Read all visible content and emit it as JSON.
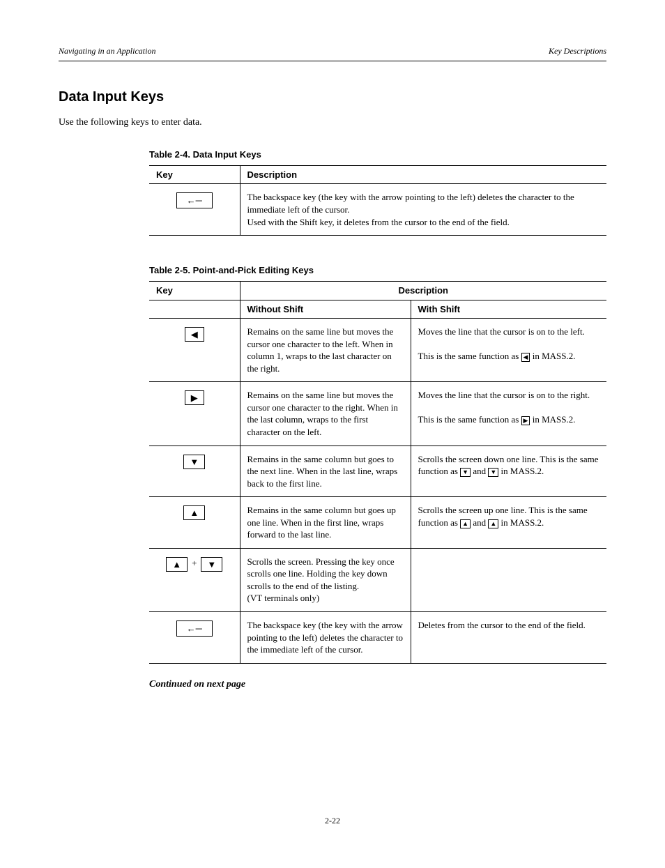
{
  "header": {
    "left": "Navigating in an Application",
    "right": "Key Descriptions"
  },
  "section": {
    "title": "Data Input Keys",
    "intro": "Use the following keys to enter data."
  },
  "table1": {
    "title": "Table 2-4. Data Input Keys",
    "headers": [
      "Key",
      "Description"
    ],
    "rows": [
      {
        "key_html": "<span class=\"key key-wide\">&#8592;&#9472;</span>",
        "desc": "The backspace key (the key with the arrow pointing to the left) deletes the character to the immediate left of the cursor.<br>Used with the Shift key, it deletes from the cursor to the end of the field."
      }
    ]
  },
  "table2": {
    "title": "Table 2-5. Point-and-Pick Editing Keys",
    "headers": [
      "Key",
      "Without Shift",
      "With Shift"
    ],
    "rows": [
      {
        "key_html": "<span class=\"key\">&#9664;</span>",
        "col2": "Remains on the same line but moves the cursor one character to the left. When in column 1, wraps to the last character on the right.",
        "col3": "Moves the line that the cursor is on to the left.<br><br>This is the same function as <span class=\"key-sm\">&#9664;</span> in MASS.2."
      },
      {
        "key_html": "<span class=\"key\">&#9654;</span>",
        "col2": "Remains on the same line but moves the cursor one character to the right. When in the last column, wraps to the first character on the left.",
        "col3": "Moves the line that the cursor is on to the right.<br><br>This is the same function as <span class=\"key-sm\">&#9654;</span> in MASS.2."
      },
      {
        "key_html": "<span class=\"key\">&#9660;</span>",
        "col2": "Remains in the same column but goes to the next line. When in the last line, wraps back to the first line.",
        "col3": "Scrolls the screen down one line. This is the same function as <span class=\"key-sm\">&#9660;</span> and <span class=\"key-sm\">&#9660;</span> in MASS.2."
      },
      {
        "key_html": "<span class=\"key\">&#9650;</span>",
        "col2": "Remains in the same column but goes up one line. When in the first line, wraps forward to the last line.",
        "col3": "Scrolls the screen up one line. This is the same function as <span class=\"key-sm\">&#9650;</span> and <span class=\"key-sm\">&#9650;</span> in MASS.2."
      },
      {
        "key_html": "<span class=\"key\">&#9650;</span><span class=\"plus\">+</span><span class=\"key\">&#9660;</span>",
        "col2": "Scrolls the screen. Pressing the key once scrolls one line. Holding the key down scrolls to the end of the listing.<br>(VT terminals only)",
        "col3": ""
      },
      {
        "key_html": "<span class=\"key key-wide\">&#8592;&#9472;</span>",
        "col2": "The backspace key (the key with the arrow pointing to the left) deletes the character to the immediate left of the cursor.",
        "col3": "Deletes from the cursor to the end of the field."
      }
    ]
  },
  "footer_note": "Continued on next page",
  "page_number": "2-22"
}
